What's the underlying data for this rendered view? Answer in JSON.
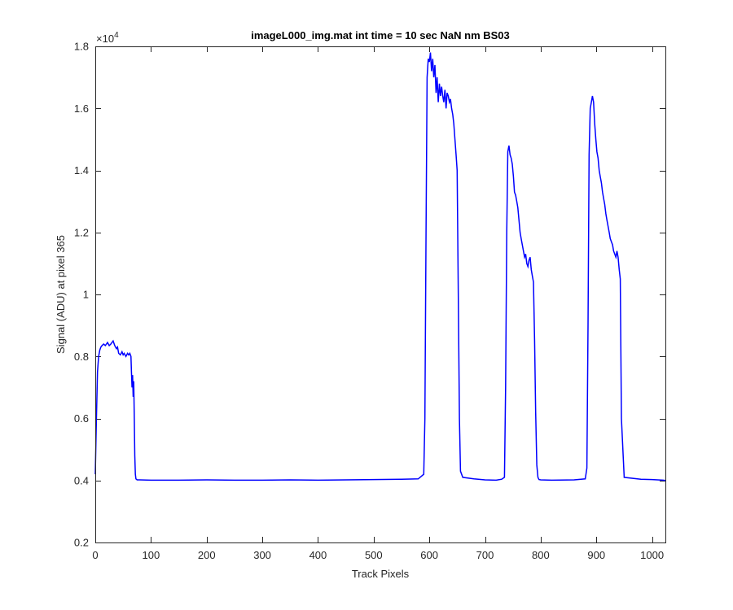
{
  "chart_data": {
    "type": "line",
    "title": "imageL000_img.mat int time = 10 sec  NaN nm BS03",
    "xlabel": "Track Pixels",
    "ylabel": "Signal (ADU) at pixel 365",
    "y_multiplier": "×10",
    "y_exponent": "4",
    "xlim": [
      0,
      1024
    ],
    "ylim": [
      0.2,
      1.8
    ],
    "x_ticks": [
      0,
      100,
      200,
      300,
      400,
      500,
      600,
      700,
      800,
      900,
      1000
    ],
    "x_tick_labels": [
      "0",
      "100",
      "200",
      "300",
      "400",
      "500",
      "600",
      "700",
      "800",
      "900",
      "1000"
    ],
    "y_ticks": [
      0.2,
      0.4,
      0.6,
      0.8,
      1.0,
      1.2,
      1.4,
      1.6,
      1.8
    ],
    "y_tick_labels": [
      "0.2",
      "0.4",
      "0.6",
      "0.8",
      "1",
      "1.2",
      "1.4",
      "1.6",
      "1.8"
    ],
    "grid": false,
    "series": [
      {
        "color": "#0000ff",
        "x": [
          0,
          2,
          4,
          6,
          8,
          10,
          12,
          15,
          18,
          20,
          22,
          25,
          28,
          30,
          32,
          35,
          38,
          40,
          42,
          45,
          48,
          50,
          52,
          55,
          58,
          60,
          62,
          64,
          65,
          66,
          67,
          68,
          69,
          70,
          71,
          72,
          73,
          75,
          80,
          100,
          150,
          200,
          250,
          300,
          350,
          400,
          450,
          500,
          550,
          580,
          590,
          592,
          594,
          596,
          598,
          600,
          602,
          604,
          606,
          608,
          610,
          612,
          614,
          616,
          618,
          620,
          622,
          624,
          626,
          628,
          630,
          632,
          634,
          636,
          638,
          640,
          642,
          644,
          646,
          648,
          650,
          652,
          654,
          656,
          660,
          680,
          700,
          720,
          730,
          735,
          737,
          739,
          741,
          743,
          745,
          747,
          749,
          751,
          753,
          755,
          757,
          759,
          761,
          763,
          765,
          767,
          769,
          771,
          773,
          775,
          777,
          779,
          781,
          783,
          785,
          787,
          789,
          791,
          793,
          795,
          797,
          800,
          820,
          860,
          880,
          883,
          885,
          887,
          889,
          891,
          893,
          895,
          897,
          899,
          901,
          903,
          905,
          907,
          909,
          911,
          913,
          915,
          917,
          919,
          921,
          923,
          925,
          927,
          929,
          931,
          933,
          935,
          937,
          939,
          941,
          943,
          945,
          950,
          980,
          1000,
          1010,
          1020,
          1024
        ],
        "y": [
          0.42,
          0.6,
          0.75,
          0.8,
          0.82,
          0.83,
          0.835,
          0.84,
          0.835,
          0.84,
          0.845,
          0.835,
          0.84,
          0.845,
          0.85,
          0.835,
          0.825,
          0.83,
          0.81,
          0.805,
          0.815,
          0.805,
          0.81,
          0.8,
          0.81,
          0.805,
          0.81,
          0.8,
          0.75,
          0.7,
          0.74,
          0.67,
          0.72,
          0.6,
          0.48,
          0.42,
          0.405,
          0.402,
          0.402,
          0.401,
          0.401,
          0.402,
          0.401,
          0.401,
          0.402,
          0.401,
          0.402,
          0.403,
          0.404,
          0.405,
          0.42,
          0.6,
          1.2,
          1.7,
          1.76,
          1.75,
          1.78,
          1.72,
          1.76,
          1.7,
          1.74,
          1.65,
          1.7,
          1.62,
          1.68,
          1.64,
          1.67,
          1.64,
          1.62,
          1.66,
          1.6,
          1.65,
          1.64,
          1.62,
          1.63,
          1.6,
          1.58,
          1.55,
          1.5,
          1.45,
          1.4,
          1.0,
          0.6,
          0.43,
          0.41,
          0.405,
          0.402,
          0.401,
          0.404,
          0.41,
          0.7,
          1.2,
          1.46,
          1.48,
          1.45,
          1.44,
          1.42,
          1.38,
          1.33,
          1.32,
          1.3,
          1.28,
          1.24,
          1.2,
          1.18,
          1.16,
          1.14,
          1.12,
          1.13,
          1.1,
          1.09,
          1.11,
          1.12,
          1.08,
          1.06,
          1.04,
          0.85,
          0.62,
          0.45,
          0.41,
          0.403,
          0.402,
          0.401,
          0.402,
          0.405,
          0.44,
          0.9,
          1.45,
          1.6,
          1.62,
          1.64,
          1.62,
          1.55,
          1.5,
          1.46,
          1.44,
          1.4,
          1.38,
          1.36,
          1.33,
          1.31,
          1.29,
          1.26,
          1.24,
          1.22,
          1.2,
          1.18,
          1.17,
          1.16,
          1.14,
          1.13,
          1.12,
          1.14,
          1.12,
          1.08,
          1.05,
          0.6,
          0.41,
          0.404,
          0.403,
          0.402,
          0.401,
          0.4
        ]
      }
    ]
  }
}
